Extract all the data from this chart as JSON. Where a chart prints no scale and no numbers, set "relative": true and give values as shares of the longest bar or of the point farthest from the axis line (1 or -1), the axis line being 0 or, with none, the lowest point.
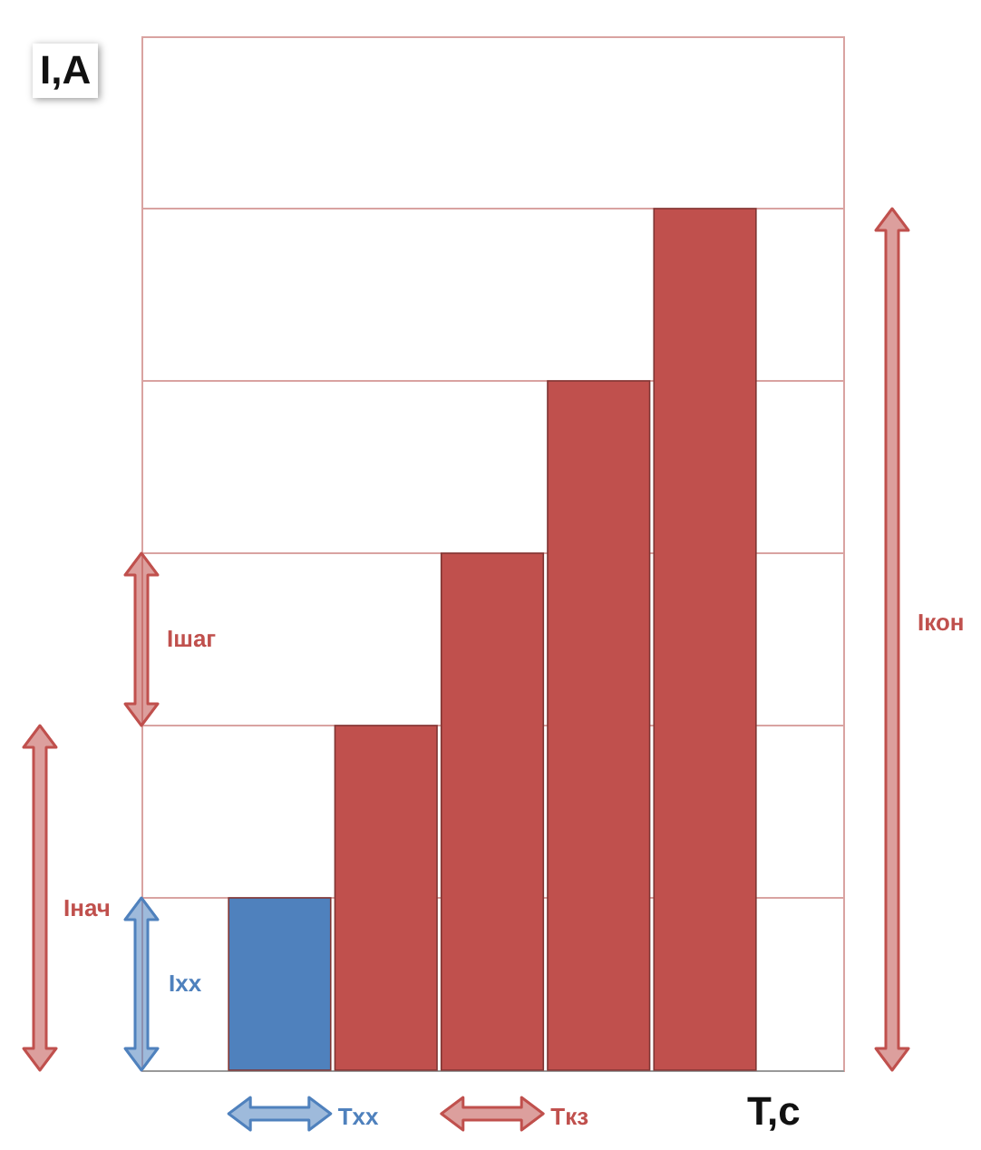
{
  "chart_data": {
    "type": "bar",
    "relative": true,
    "xlabel": "T,c",
    "ylabel": "I,A",
    "categories": [
      null,
      null,
      null,
      null,
      null
    ],
    "values": [
      0.2,
      0.4,
      0.6,
      0.8,
      1
    ],
    "colors": [
      "#4f81bd",
      "#c0504d",
      "#c0504d",
      "#c0504d",
      "#c0504d"
    ],
    "ref_lines": [
      {
        "axis": "y",
        "value": 0.2,
        "color": "#d9a3a1"
      },
      {
        "axis": "y",
        "value": 0.4,
        "color": "#d9a3a1"
      },
      {
        "axis": "y",
        "value": 0.6,
        "color": "#d9a3a1"
      },
      {
        "axis": "y",
        "value": 0.8,
        "color": "#d9a3a1"
      },
      {
        "axis": "y",
        "value": 1,
        "color": "#d9a3a1"
      }
    ],
    "annotations": [
      "Iшаг",
      "Iнач",
      "Iхх",
      "Iкон",
      "Tхх",
      "Tкз"
    ]
  }
}
